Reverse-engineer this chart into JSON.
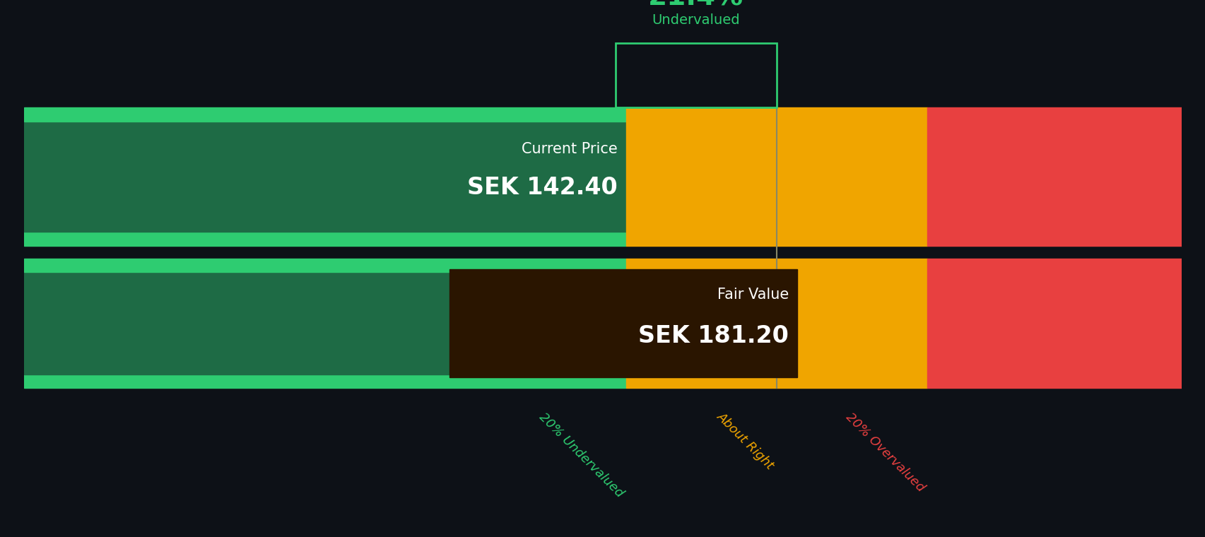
{
  "background_color": "#0d1117",
  "current_price": 142.4,
  "fair_value": 181.2,
  "undervalued_label": "Undervalued",
  "current_price_label": "Current Price",
  "current_price_text": "SEK 142.40",
  "fair_value_label": "Fair Value",
  "fair_value_text": "SEK 181.20",
  "color_green_light": "#2ecc71",
  "color_green_dark": "#1e6b45",
  "color_orange": "#f0a500",
  "color_red": "#e84040",
  "label_undervalued": "20% Undervalued",
  "label_about_right": "About Right",
  "label_overvalued": "20% Overvalued",
  "label_color_undervalued": "#2ecc71",
  "label_color_about_right": "#f0a500",
  "label_color_overvalued": "#e84040",
  "annotation_box_border": "#2ecc71",
  "fair_value_box_color": "#2a1500",
  "fair_value_line_color": "#888866"
}
